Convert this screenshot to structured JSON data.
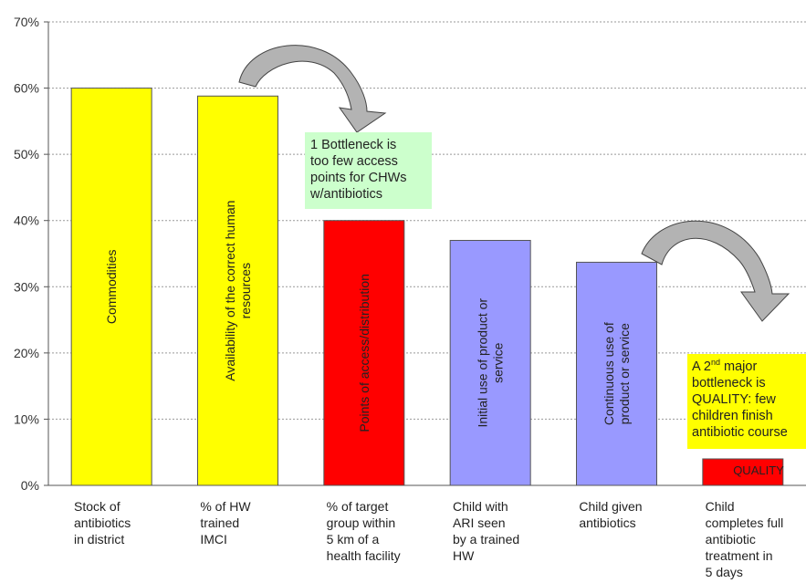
{
  "chart_data": {
    "type": "bar",
    "categories": [
      "Stock of antibiotics in district",
      "% of HW trained IMCI",
      "% of target group within 5 km of a health facility",
      "Child with ARI seen by a trained HW",
      "Child given antibiotics",
      "Child completes full antibiotic treatment in 5 days"
    ],
    "category_lines": [
      [
        "Stock of",
        "antibiotics",
        "in district"
      ],
      [
        "% of HW",
        "trained",
        "IMCI"
      ],
      [
        "% of target",
        "group within",
        "5 km of a",
        "health facility"
      ],
      [
        "Child with",
        "ARI seen",
        "by a trained",
        "HW"
      ],
      [
        "Child given",
        "antibiotics"
      ],
      [
        "Child",
        "completes full",
        "antibiotic",
        "treatment in",
        "5 days"
      ]
    ],
    "values": [
      60,
      58.8,
      40,
      37,
      33.7,
      4
    ],
    "bar_colors": [
      "#ffff00",
      "#ffff00",
      "#ff0000",
      "#9999ff",
      "#9999ff",
      "#ff0000"
    ],
    "bar_labels": [
      [
        "Commodities"
      ],
      [
        "Availability of the correct human",
        "resources"
      ],
      [
        "Points of access/distribution"
      ],
      [
        "Initial use of product or",
        "service"
      ],
      [
        "Continuous use of",
        "product or service"
      ],
      [
        "QUALITY"
      ]
    ],
    "y_ticks": [
      "0%",
      "10%",
      "20%",
      "30%",
      "40%",
      "50%",
      "60%",
      "70%"
    ],
    "ylim": [
      0,
      70
    ],
    "grid": true,
    "title": "",
    "xlabel": "",
    "ylabel": ""
  },
  "annotations": {
    "note1_lines": [
      "1 Bottleneck is",
      "too few access",
      "points for CHWs",
      "w/antibiotics"
    ],
    "note2_line1_pre": "A 2",
    "note2_line1_sup": "nd",
    "note2_line1_post": " major",
    "note2_rest": [
      "bottleneck is",
      "QUALITY: few",
      "children finish",
      "antibiotic course"
    ]
  },
  "colors": {
    "arrow_fill": "#b3b3b3",
    "grid": "#999999",
    "note1_bg": "#ccffcc",
    "note2_bg": "#ffff00"
  }
}
